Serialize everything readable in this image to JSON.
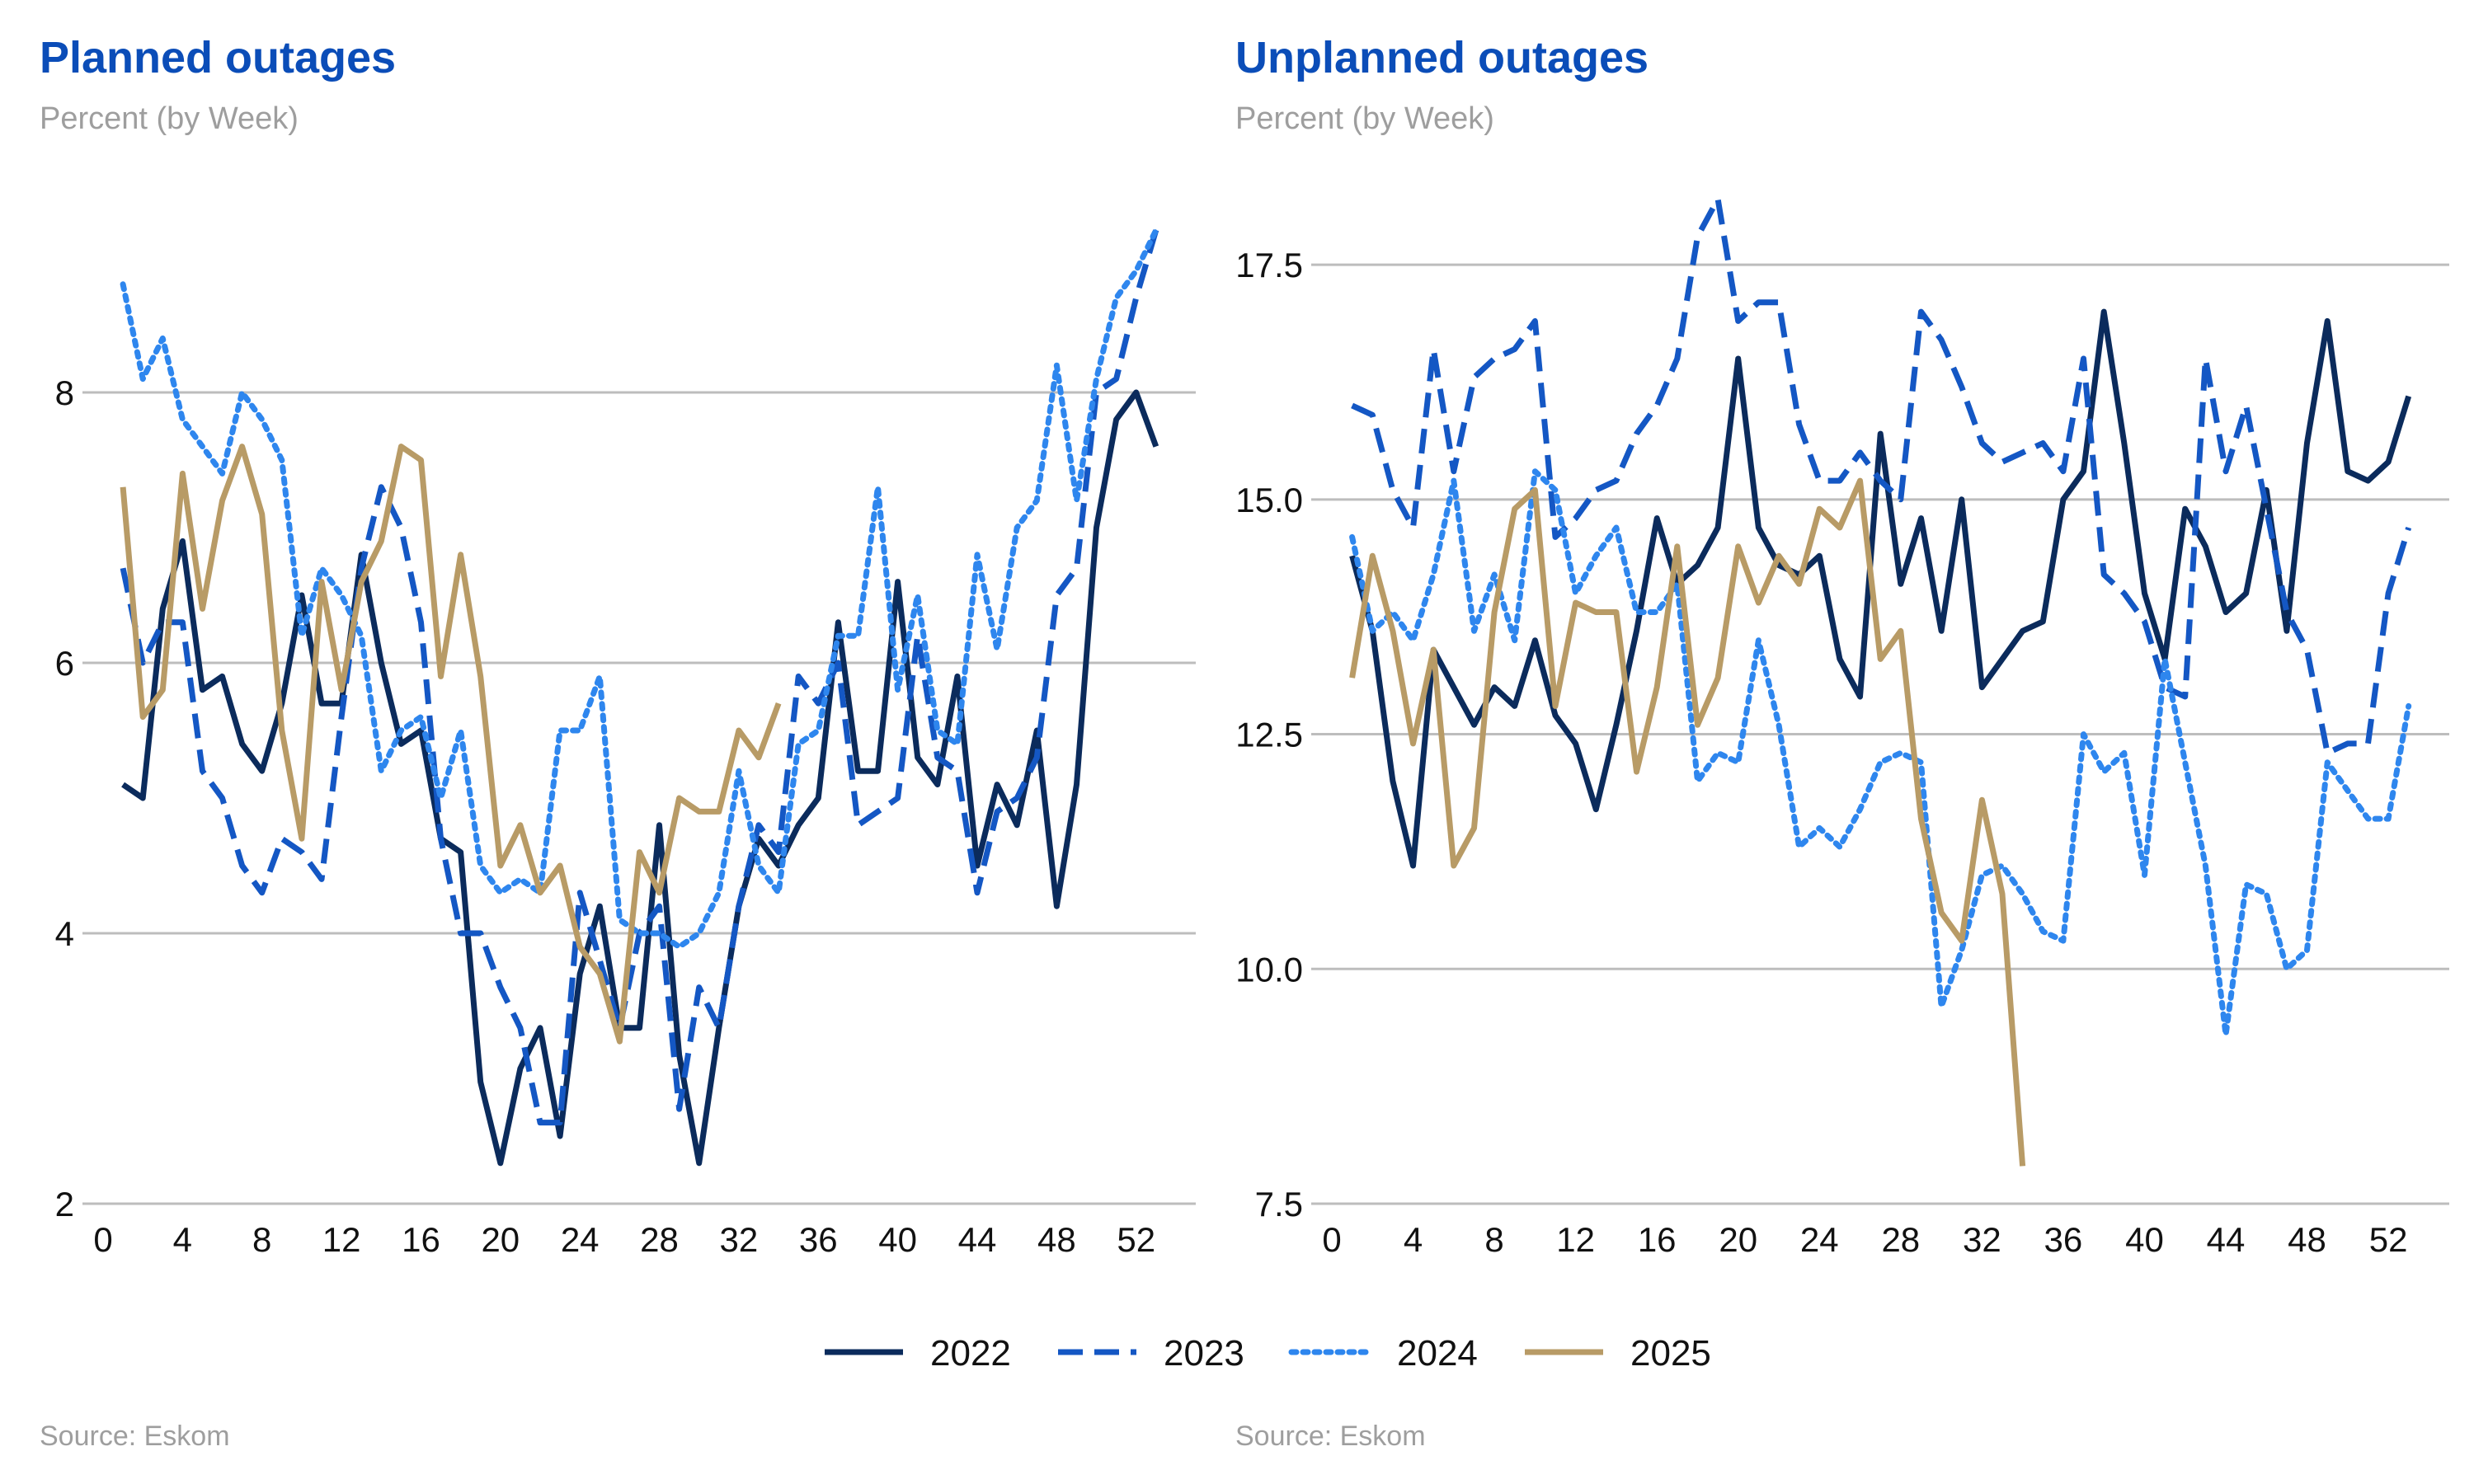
{
  "colors": {
    "title": "#0B4DB8",
    "muted": "#9E9E9E",
    "grid": "#BDBDBD",
    "s2022": "#0B2B5C",
    "s2023": "#1457C4",
    "s2024": "#2E86EE",
    "s2025": "#B89B66"
  },
  "legend": {
    "items": [
      {
        "name": "2022",
        "style": "solid",
        "color": "#0B2B5C"
      },
      {
        "name": "2023",
        "style": "dashed",
        "color": "#1457C4"
      },
      {
        "name": "2024",
        "style": "dotted",
        "color": "#2E86EE"
      },
      {
        "name": "2025",
        "style": "solid",
        "color": "#B89B66"
      }
    ]
  },
  "chart_data": [
    {
      "type": "line",
      "title": "Planned outages",
      "subtitle": "Percent (by Week)",
      "source": "Source: Eskom",
      "xlim": [
        0,
        55
      ],
      "ylim": [
        2,
        9.5
      ],
      "xticks": [
        0,
        4,
        8,
        12,
        16,
        20,
        24,
        28,
        32,
        36,
        40,
        44,
        48,
        52
      ],
      "yticks": [
        2,
        4,
        6,
        8
      ],
      "yticklabels": [
        "2",
        "4",
        "6",
        "8"
      ],
      "grid": "horizontal",
      "series": [
        {
          "name": "2022",
          "x": [
            1,
            2,
            3,
            4,
            5,
            6,
            7,
            8,
            9,
            10,
            11,
            12,
            13,
            14,
            15,
            16,
            17,
            18,
            19,
            20,
            21,
            22,
            23,
            24,
            25,
            26,
            27,
            28,
            29,
            30,
            31,
            32,
            33,
            34,
            35,
            36,
            37,
            38,
            39,
            40,
            41,
            42,
            43,
            44,
            45,
            46,
            47,
            48,
            49,
            50,
            51,
            52,
            53
          ],
          "values": [
            5.1,
            5.0,
            6.4,
            6.9,
            5.8,
            5.9,
            5.4,
            5.2,
            5.7,
            6.5,
            5.7,
            5.7,
            6.8,
            6.0,
            5.4,
            5.5,
            4.7,
            4.6,
            2.9,
            2.3,
            3.0,
            3.3,
            2.5,
            3.7,
            4.2,
            3.3,
            3.3,
            4.8,
            3.1,
            2.3,
            3.3,
            4.2,
            4.7,
            4.5,
            4.8,
            5.0,
            6.3,
            5.2,
            5.2,
            6.6,
            5.3,
            5.1,
            5.9,
            4.5,
            5.1,
            4.8,
            5.5,
            4.2,
            5.1,
            7.0,
            7.8,
            8.0,
            7.6
          ]
        },
        {
          "name": "2023",
          "x": [
            1,
            2,
            3,
            4,
            5,
            6,
            7,
            8,
            9,
            10,
            11,
            12,
            13,
            14,
            15,
            16,
            17,
            18,
            19,
            20,
            21,
            22,
            23,
            24,
            25,
            26,
            27,
            28,
            29,
            30,
            31,
            32,
            33,
            34,
            35,
            36,
            37,
            38,
            39,
            40,
            41,
            42,
            43,
            44,
            45,
            46,
            47,
            48,
            49,
            50,
            51,
            52,
            53
          ],
          "values": [
            6.7,
            6.0,
            6.3,
            6.3,
            5.2,
            5.0,
            4.5,
            4.3,
            4.7,
            4.6,
            4.4,
            5.6,
            6.7,
            7.3,
            7.0,
            6.3,
            4.7,
            4.0,
            4.0,
            3.6,
            3.3,
            2.6,
            2.6,
            4.3,
            3.8,
            3.3,
            4.0,
            4.2,
            2.7,
            3.6,
            3.3,
            4.2,
            4.8,
            4.6,
            5.9,
            5.7,
            6.0,
            4.8,
            4.9,
            5.0,
            6.2,
            5.3,
            5.2,
            4.3,
            4.9,
            5.0,
            5.3,
            6.5,
            6.7,
            8.0,
            8.1,
            8.7,
            9.2
          ]
        },
        {
          "name": "2024",
          "x": [
            1,
            2,
            3,
            4,
            5,
            6,
            7,
            8,
            9,
            10,
            11,
            12,
            13,
            14,
            15,
            16,
            17,
            18,
            19,
            20,
            21,
            22,
            23,
            24,
            25,
            26,
            27,
            28,
            29,
            30,
            31,
            32,
            33,
            34,
            35,
            36,
            37,
            38,
            39,
            40,
            41,
            42,
            43,
            44,
            45,
            46,
            47,
            48,
            49,
            50,
            51,
            52,
            53
          ],
          "values": [
            8.8,
            8.1,
            8.4,
            7.8,
            7.6,
            7.4,
            8.0,
            7.8,
            7.5,
            6.2,
            6.7,
            6.5,
            6.2,
            5.2,
            5.5,
            5.6,
            5.0,
            5.5,
            4.5,
            4.3,
            4.4,
            4.3,
            5.5,
            5.5,
            5.9,
            4.1,
            4.0,
            4.0,
            3.9,
            4.0,
            4.3,
            5.2,
            4.5,
            4.3,
            5.4,
            5.5,
            6.2,
            6.2,
            7.3,
            5.8,
            6.5,
            5.5,
            5.4,
            6.8,
            6.1,
            7.0,
            7.2,
            8.2,
            7.2,
            8.1,
            8.7,
            8.9,
            9.2
          ]
        },
        {
          "name": "2025",
          "x": [
            1,
            2,
            3,
            4,
            5,
            6,
            7,
            8,
            9,
            10,
            11,
            12,
            13,
            14,
            15,
            16,
            17,
            18,
            19,
            20,
            21,
            22,
            23,
            24,
            25,
            26,
            27,
            28,
            29,
            30,
            31,
            32,
            33,
            34
          ],
          "values": [
            7.3,
            5.6,
            5.8,
            7.4,
            6.4,
            7.2,
            7.6,
            7.1,
            5.5,
            4.7,
            6.6,
            5.8,
            6.6,
            6.9,
            7.6,
            7.5,
            5.9,
            6.8,
            5.9,
            4.5,
            4.8,
            4.3,
            4.5,
            3.9,
            3.7,
            3.2,
            4.6,
            4.3,
            5.0,
            4.9,
            4.9,
            5.5,
            5.3,
            5.7
          ]
        }
      ]
    },
    {
      "type": "line",
      "title": "Unplanned outages",
      "subtitle": "Percent (by Week)",
      "source": "Source: Eskom",
      "xlim": [
        0,
        55
      ],
      "ylim": [
        7.5,
        18.3
      ],
      "xticks": [
        0,
        4,
        8,
        12,
        16,
        20,
        24,
        28,
        32,
        36,
        40,
        44,
        48,
        52
      ],
      "yticks": [
        7.5,
        10,
        12.5,
        15,
        17.5
      ],
      "yticklabels": [
        "7.5",
        "10.0",
        "12.5",
        "15.0",
        "17.5"
      ],
      "grid": "horizontal",
      "series": [
        {
          "name": "2022",
          "x": [
            1,
            2,
            3,
            4,
            5,
            6,
            7,
            8,
            9,
            10,
            11,
            12,
            13,
            14,
            15,
            16,
            17,
            18,
            19,
            20,
            21,
            22,
            23,
            24,
            25,
            26,
            27,
            28,
            29,
            30,
            31,
            32,
            33,
            34,
            35,
            36,
            37,
            38,
            39,
            40,
            41,
            42,
            43,
            44,
            45,
            46,
            47,
            48,
            49,
            50,
            51,
            52,
            53
          ],
          "values": [
            14.4,
            13.6,
            12.0,
            11.1,
            13.4,
            13.0,
            12.6,
            13.0,
            12.8,
            13.5,
            12.7,
            12.4,
            11.7,
            12.6,
            13.6,
            14.8,
            14.1,
            14.3,
            14.7,
            16.5,
            14.7,
            14.3,
            14.2,
            14.4,
            13.3,
            12.9,
            15.7,
            14.1,
            14.8,
            13.6,
            15.0,
            13.0,
            13.3,
            13.6,
            13.7,
            15.0,
            15.3,
            17.0,
            15.6,
            14.0,
            13.3,
            14.9,
            14.5,
            13.8,
            14.0,
            15.1,
            13.6,
            15.6,
            16.9,
            15.3,
            15.2,
            15.4,
            16.1
          ]
        },
        {
          "name": "2023",
          "x": [
            1,
            2,
            3,
            4,
            5,
            6,
            7,
            8,
            9,
            10,
            11,
            12,
            13,
            14,
            15,
            16,
            17,
            18,
            19,
            20,
            21,
            22,
            23,
            24,
            25,
            26,
            27,
            28,
            29,
            30,
            31,
            32,
            33,
            34,
            35,
            36,
            37,
            38,
            39,
            40,
            41,
            42,
            43,
            44,
            45,
            46,
            47,
            48,
            49,
            50,
            51,
            52,
            53
          ],
          "values": [
            16.0,
            15.9,
            15.1,
            14.7,
            16.6,
            15.3,
            16.3,
            16.5,
            16.6,
            16.9,
            14.6,
            14.8,
            15.1,
            15.2,
            15.7,
            16.0,
            16.5,
            17.8,
            18.2,
            16.9,
            17.1,
            17.1,
            15.8,
            15.2,
            15.2,
            15.5,
            15.2,
            15.0,
            17.0,
            16.7,
            16.2,
            15.6,
            15.4,
            15.5,
            15.6,
            15.3,
            16.5,
            14.2,
            14.0,
            13.7,
            13.0,
            12.9,
            16.5,
            15.3,
            16.0,
            14.9,
            13.8,
            13.4,
            12.3,
            12.4,
            12.4,
            14.0,
            14.7
          ]
        },
        {
          "name": "2024",
          "x": [
            1,
            2,
            3,
            4,
            5,
            6,
            7,
            8,
            9,
            10,
            11,
            12,
            13,
            14,
            15,
            16,
            17,
            18,
            19,
            20,
            21,
            22,
            23,
            24,
            25,
            26,
            27,
            28,
            29,
            30,
            31,
            32,
            33,
            34,
            35,
            36,
            37,
            38,
            39,
            40,
            41,
            42,
            43,
            44,
            45,
            46,
            47,
            48,
            49,
            50,
            51,
            52,
            53
          ],
          "values": [
            14.6,
            13.6,
            13.8,
            13.5,
            14.2,
            15.2,
            13.6,
            14.2,
            13.5,
            15.3,
            15.1,
            14.0,
            14.4,
            14.7,
            13.8,
            13.8,
            14.1,
            12.0,
            12.3,
            12.2,
            13.5,
            12.6,
            11.3,
            11.5,
            11.3,
            11.7,
            12.2,
            12.3,
            12.2,
            9.6,
            10.2,
            11.0,
            11.1,
            10.8,
            10.4,
            10.3,
            12.5,
            12.1,
            12.3,
            11.0,
            13.3,
            12.2,
            11.1,
            9.3,
            10.9,
            10.8,
            10.0,
            10.2,
            12.2,
            11.9,
            11.6,
            11.6,
            12.8
          ]
        },
        {
          "name": "2025",
          "x": [
            1,
            2,
            3,
            4,
            5,
            6,
            7,
            8,
            9,
            10,
            11,
            12,
            13,
            14,
            15,
            16,
            17,
            18,
            19,
            20,
            21,
            22,
            23,
            24,
            25,
            26,
            27,
            28,
            29,
            30,
            31,
            32,
            33,
            34
          ],
          "values": [
            13.1,
            14.4,
            13.6,
            12.4,
            13.4,
            11.1,
            11.5,
            13.8,
            14.9,
            15.1,
            12.8,
            13.9,
            13.8,
            13.8,
            12.1,
            13.0,
            14.5,
            12.6,
            13.1,
            14.5,
            13.9,
            14.4,
            14.1,
            14.9,
            14.7,
            15.2,
            13.3,
            13.6,
            11.6,
            10.6,
            10.3,
            11.8,
            10.8,
            7.9
          ]
        }
      ]
    }
  ]
}
